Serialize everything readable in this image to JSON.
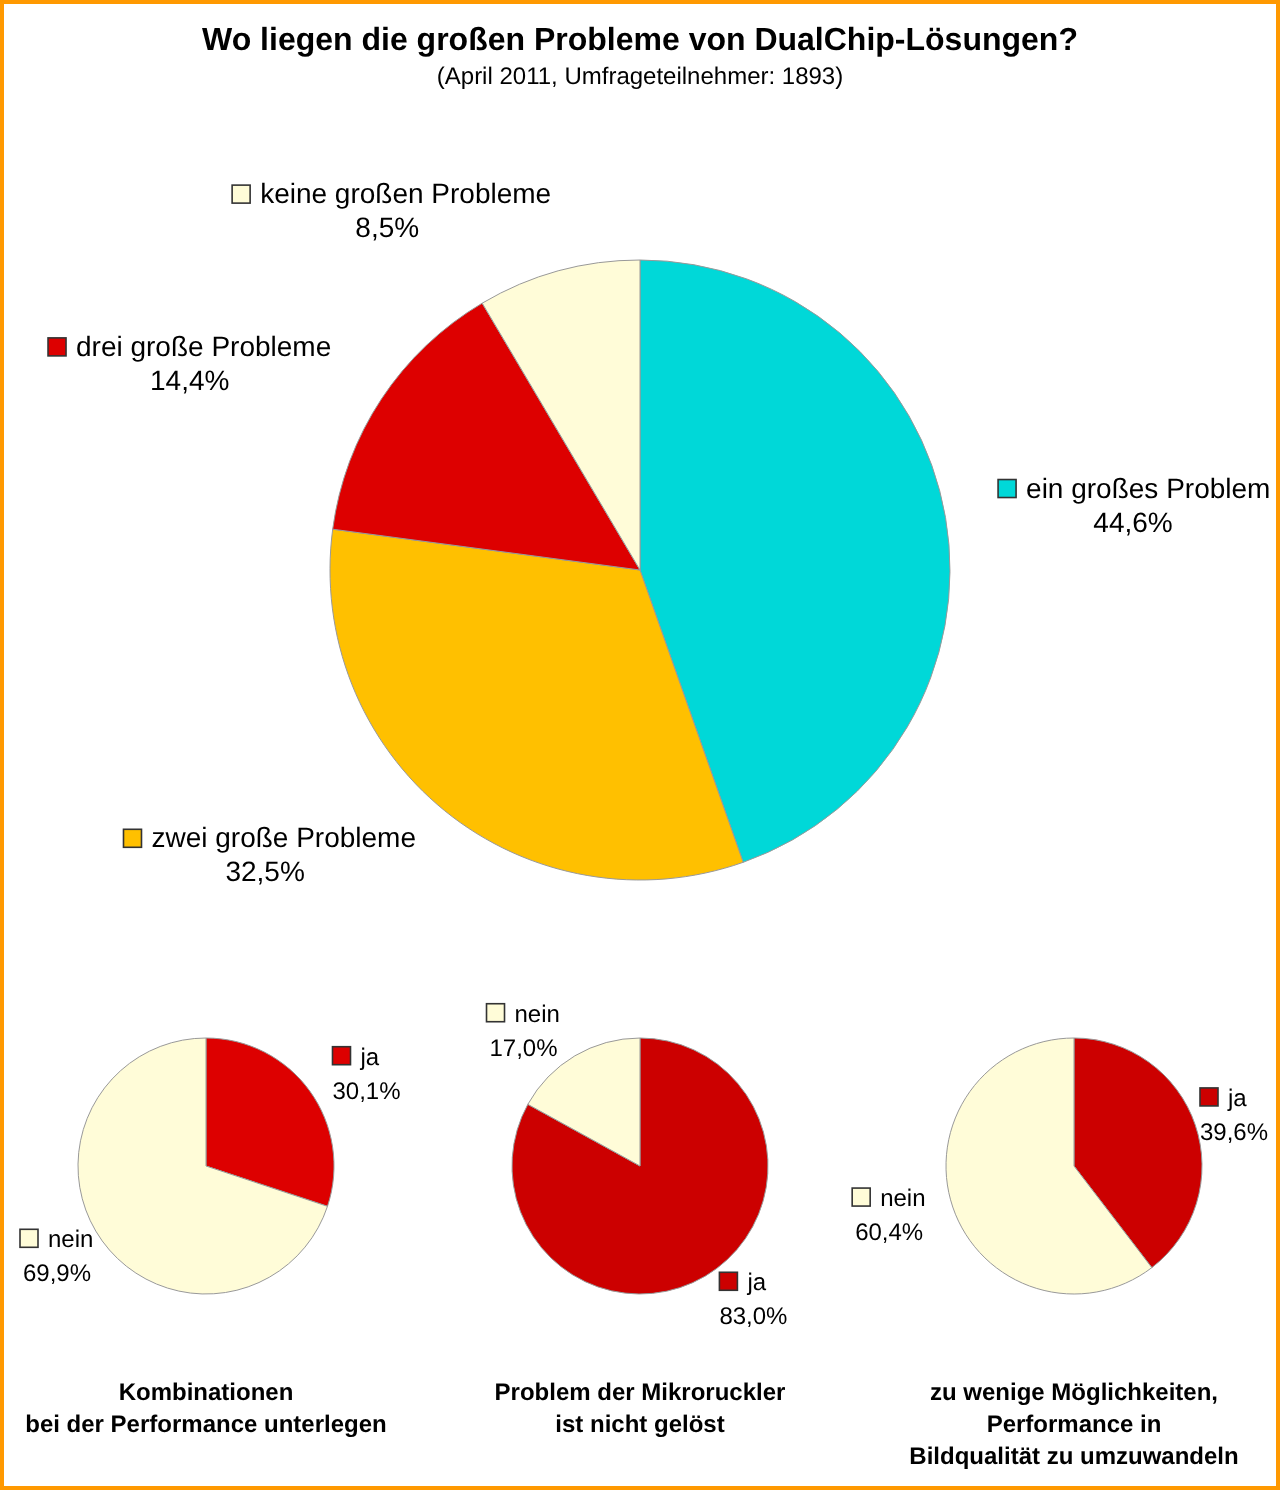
{
  "chart_data": [
    {
      "type": "pie",
      "title": "Wo liegen die großen Probleme von DualChip-Lösungen?",
      "subtitle": "(April 2011, Umfrageteilnehmer: 1893)",
      "categories": [
        "ein großes Problem",
        "zwei große Probleme",
        "drei große Probleme",
        "keine großen Probleme"
      ],
      "values": [
        44.6,
        32.5,
        14.4,
        8.5
      ],
      "colors": [
        "#00d8d8",
        "#ffc000",
        "#dd0000",
        "#fffcd8"
      ],
      "value_labels": [
        "44,6%",
        "32,5%",
        "14,4%",
        "8,5%"
      ],
      "legend": "right"
    },
    {
      "type": "pie",
      "title": "Kombinationen\nbei der Performance unterlegen",
      "categories": [
        "ja",
        "nein"
      ],
      "values": [
        30.1,
        69.9
      ],
      "colors": [
        "#dd0000",
        "#fffcd8"
      ],
      "value_labels": [
        "30,1%",
        "69,9%"
      ],
      "legend": "right"
    },
    {
      "type": "pie",
      "title": "Problem der Mikroruckler\nist nicht gelöst",
      "categories": [
        "ja",
        "nein"
      ],
      "values": [
        83.0,
        17.0
      ],
      "colors": [
        "#cc0000",
        "#fffcd8"
      ],
      "value_labels": [
        "83,0%",
        "17,0%"
      ],
      "legend": "top left"
    },
    {
      "type": "pie",
      "title": "zu wenige Möglichkeiten,\nPerformance in\nBildqualität zu umzuwandeln",
      "categories": [
        "ja",
        "nein"
      ],
      "values": [
        39.6,
        60.4
      ],
      "colors": [
        "#cc0000",
        "#fffcd8"
      ],
      "value_labels": [
        "39,6%",
        "60,4%"
      ],
      "legend": "top left"
    }
  ]
}
